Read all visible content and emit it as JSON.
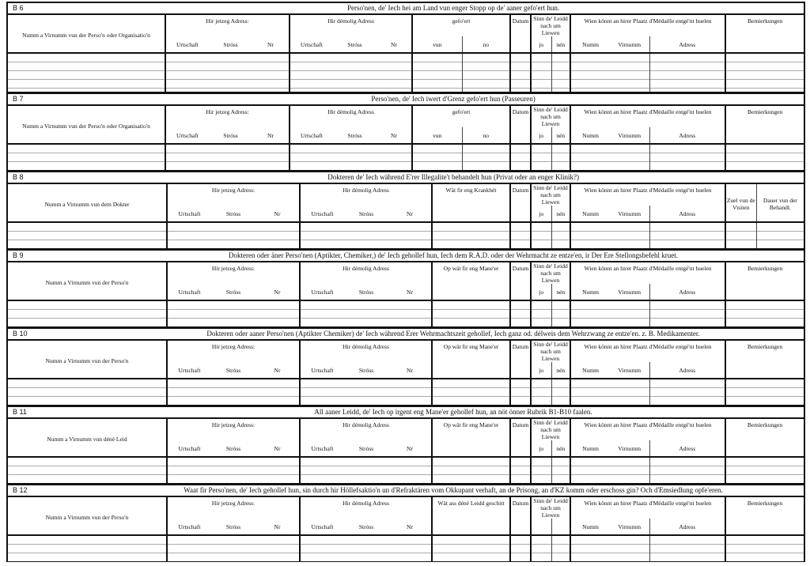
{
  "common": {
    "jetzeg": "Hir jetzeg Adress:",
    "demolig": "Hir démolig Adress",
    "urtschaft": "Urtschaft",
    "stross": "Stróss",
    "nr": "Nr",
    "datum": "Datum",
    "sinn": "Sinn de' Leidd nach um Liewen",
    "jo": "jo",
    "nen": "nén",
    "wien": "Wien könnt an hirer Plaatz d'Médaille entgé'nt huelen",
    "numm": "Numm",
    "virnumm": "Virnumm",
    "adress": "Adress",
    "bemierkungen": "Bemierkungen",
    "gefoert": "gefo'ert",
    "vun": "vun",
    "no": "no",
    "zuel": "Zuel vun de Visiten",
    "dauer": "Dauer vun der Behandl."
  },
  "sections": [
    {
      "code": "B 6",
      "title": "Perso'nen, de' Iech hei am Land vun enger Stopp op de' aaner gefo'ert hun.",
      "name_col": "Numm a Virnumm vun der Perso'n oder Organisatio'n",
      "kind": "gefoert",
      "show_jo_nen": true
    },
    {
      "code": "B 7",
      "title": "Perso'nen, de' Iech iwert d'Grenz gefo'ert hun (Passeuren)",
      "name_col": "Numm a Virnumm vun der Perso'n oder Organisatio'n",
      "kind": "gefoert",
      "show_jo_nen": true
    },
    {
      "code": "B 8",
      "title": "Dokteren de' Iech während E'rer Illegalite't behandelt hun (Privat oder an enger Klinik?)",
      "name_col": "Numm a Virnumm vun dem Dokter",
      "kind": "doctor",
      "third_col": "Wät fir eng Krankhét",
      "show_jo_nen": true
    },
    {
      "code": "B 9",
      "title": "Dokteren oder äner Perso'nen (Aptikter, Chemiker,) de' Iech gehollef hun, Iech dem R.A.D. oder der Wehrmacht ze entze'en, ir Der Ere Stellongsbefehl kruet.",
      "name_col": "Numm a Virnumm vun der Perso'n",
      "kind": "other",
      "third_col": "Op wät fir eng Mane'er",
      "show_jo_nen": true
    },
    {
      "code": "B 10",
      "title": "Dokteren oder aaner Perso'nen (Aptikter Chemiker) de' Iech während Erer Wehrmachtszeit gehollef, Iech ganz od. délweis dem Wehrzwang ze entze'en. z. B. Medikamenter.",
      "name_col": "Numm a Virnumm vun der Perso'n",
      "kind": "other",
      "third_col": "Op wät fir eng Mane'er",
      "show_jo_nen": true
    },
    {
      "code": "B 11",
      "title": "All aaner Leidd, de' Iech op irgent eng Mane'er gehollef hun, an nöt önner Rubrik B1-B10 faalen.",
      "name_col": "Numm a Virnumm vun déné Leid",
      "kind": "other",
      "third_col": "Op wät fir eng Mane'er",
      "show_jo_nen": true
    },
    {
      "code": "B 12",
      "title": "Waat fir Perso'nen, de' Iech gehollef hun, sin durch hir Höllefsaktio'n un d'Refraktären vom Okkupant verhaft, an de Prisong, an d'KZ komm oder erschoss gin? Och d'Emsiedlung opfe'eren.",
      "name_col": "Numm a Virnumm vun der Perso'n",
      "kind": "other",
      "third_col": "Wät ass déné Leidd geschitt",
      "show_jo_nen": false
    }
  ]
}
